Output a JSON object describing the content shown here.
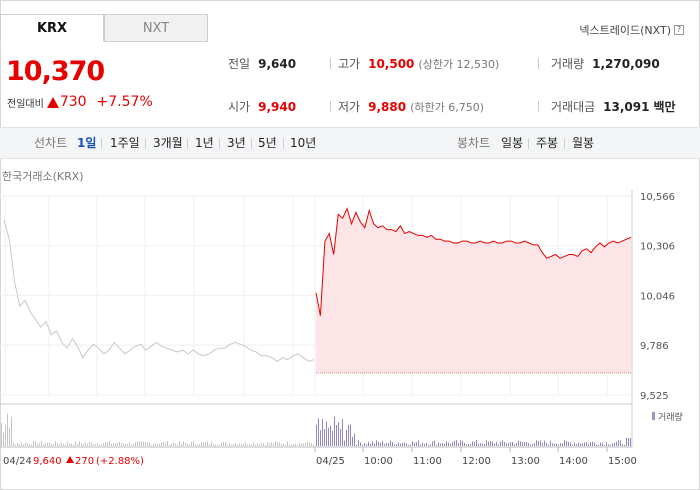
{
  "tabs": [
    {
      "label": "KRX",
      "active": true
    },
    {
      "label": "NXT",
      "active": false
    }
  ],
  "nxt_link": {
    "label": "넥스트레이드(NXT)",
    "help_glyph": "?"
  },
  "quote": {
    "price": "10,370",
    "change_label": "전일대비",
    "change": "730",
    "change_pct": "+7.57%",
    "up_color": "#e60000"
  },
  "stats": {
    "prev_close": {
      "label": "전일",
      "value": "9,640"
    },
    "open": {
      "label": "시가",
      "value": "9,940"
    },
    "high": {
      "label": "고가",
      "value": "10,500",
      "sub": "(상한가 12,530)"
    },
    "low": {
      "label": "저가",
      "value": "9,880",
      "sub": "(하한가 6,750)"
    },
    "volume": {
      "label": "거래량",
      "value": "1,270,090"
    },
    "amount": {
      "label": "거래대금",
      "value": "13,091",
      "unit": "백만"
    }
  },
  "periods": {
    "head": "선차트",
    "items": [
      "1일",
      "1주일",
      "3개월",
      "1년",
      "3년",
      "5년",
      "10년"
    ],
    "active": "1일"
  },
  "candles": {
    "head": "봉차트",
    "items": [
      "일봉",
      "주봉",
      "월봉"
    ]
  },
  "chart_title": "한국거래소(KRX)",
  "prev_day_summary": {
    "date": "04/24",
    "price": "9,640",
    "change": "270",
    "change_pct": "(+2.88%)"
  },
  "chart_data": {
    "type": "line",
    "y_ticks": [
      "10,566",
      "10,306",
      "10,046",
      "9,786",
      "9,525"
    ],
    "ylim": [
      9525,
      10566
    ],
    "x_labels": [
      "04/25",
      "10:00",
      "11:00",
      "12:00",
      "13:00",
      "14:00",
      "15:00"
    ],
    "volume_legend": "거래량",
    "reference_price": 9640,
    "series": [
      {
        "values_prev_day": [
          10440,
          10340,
          10120,
          9990,
          10020,
          9960,
          9920,
          9880,
          9910,
          9840,
          9860,
          9800,
          9770,
          9820,
          9780,
          9720,
          9760,
          9790,
          9770,
          9740,
          9760,
          9800,
          9770,
          9740,
          9760,
          9780,
          9790,
          9760,
          9780,
          9800,
          9780,
          9770,
          9760,
          9750,
          9760,
          9740,
          9760,
          9740,
          9730,
          9740,
          9760,
          9770,
          9770,
          9790,
          9800,
          9790,
          9780,
          9760,
          9750,
          9730,
          9730,
          9720,
          9700,
          9720,
          9710,
          9730,
          9740,
          9720,
          9700,
          9710
        ]
      },
      {
        "values_today": [
          10060,
          9940,
          10330,
          10370,
          10260,
          10470,
          10450,
          10500,
          10420,
          10480,
          10430,
          10400,
          10490,
          10420,
          10400,
          10410,
          10390,
          10390,
          10380,
          10410,
          10370,
          10380,
          10370,
          10360,
          10360,
          10350,
          10360,
          10340,
          10340,
          10330,
          10330,
          10320,
          10320,
          10330,
          10330,
          10320,
          10320,
          10330,
          10320,
          10320,
          10330,
          10320,
          10320,
          10330,
          10330,
          10320,
          10320,
          10330,
          10320,
          10310,
          10310,
          10270,
          10240,
          10250,
          10260,
          10240,
          10250,
          10260,
          10260,
          10250,
          10280,
          10290,
          10270,
          10300,
          10320,
          10300,
          10320,
          10330,
          10320,
          10330,
          10340,
          10350
        ]
      }
    ]
  }
}
